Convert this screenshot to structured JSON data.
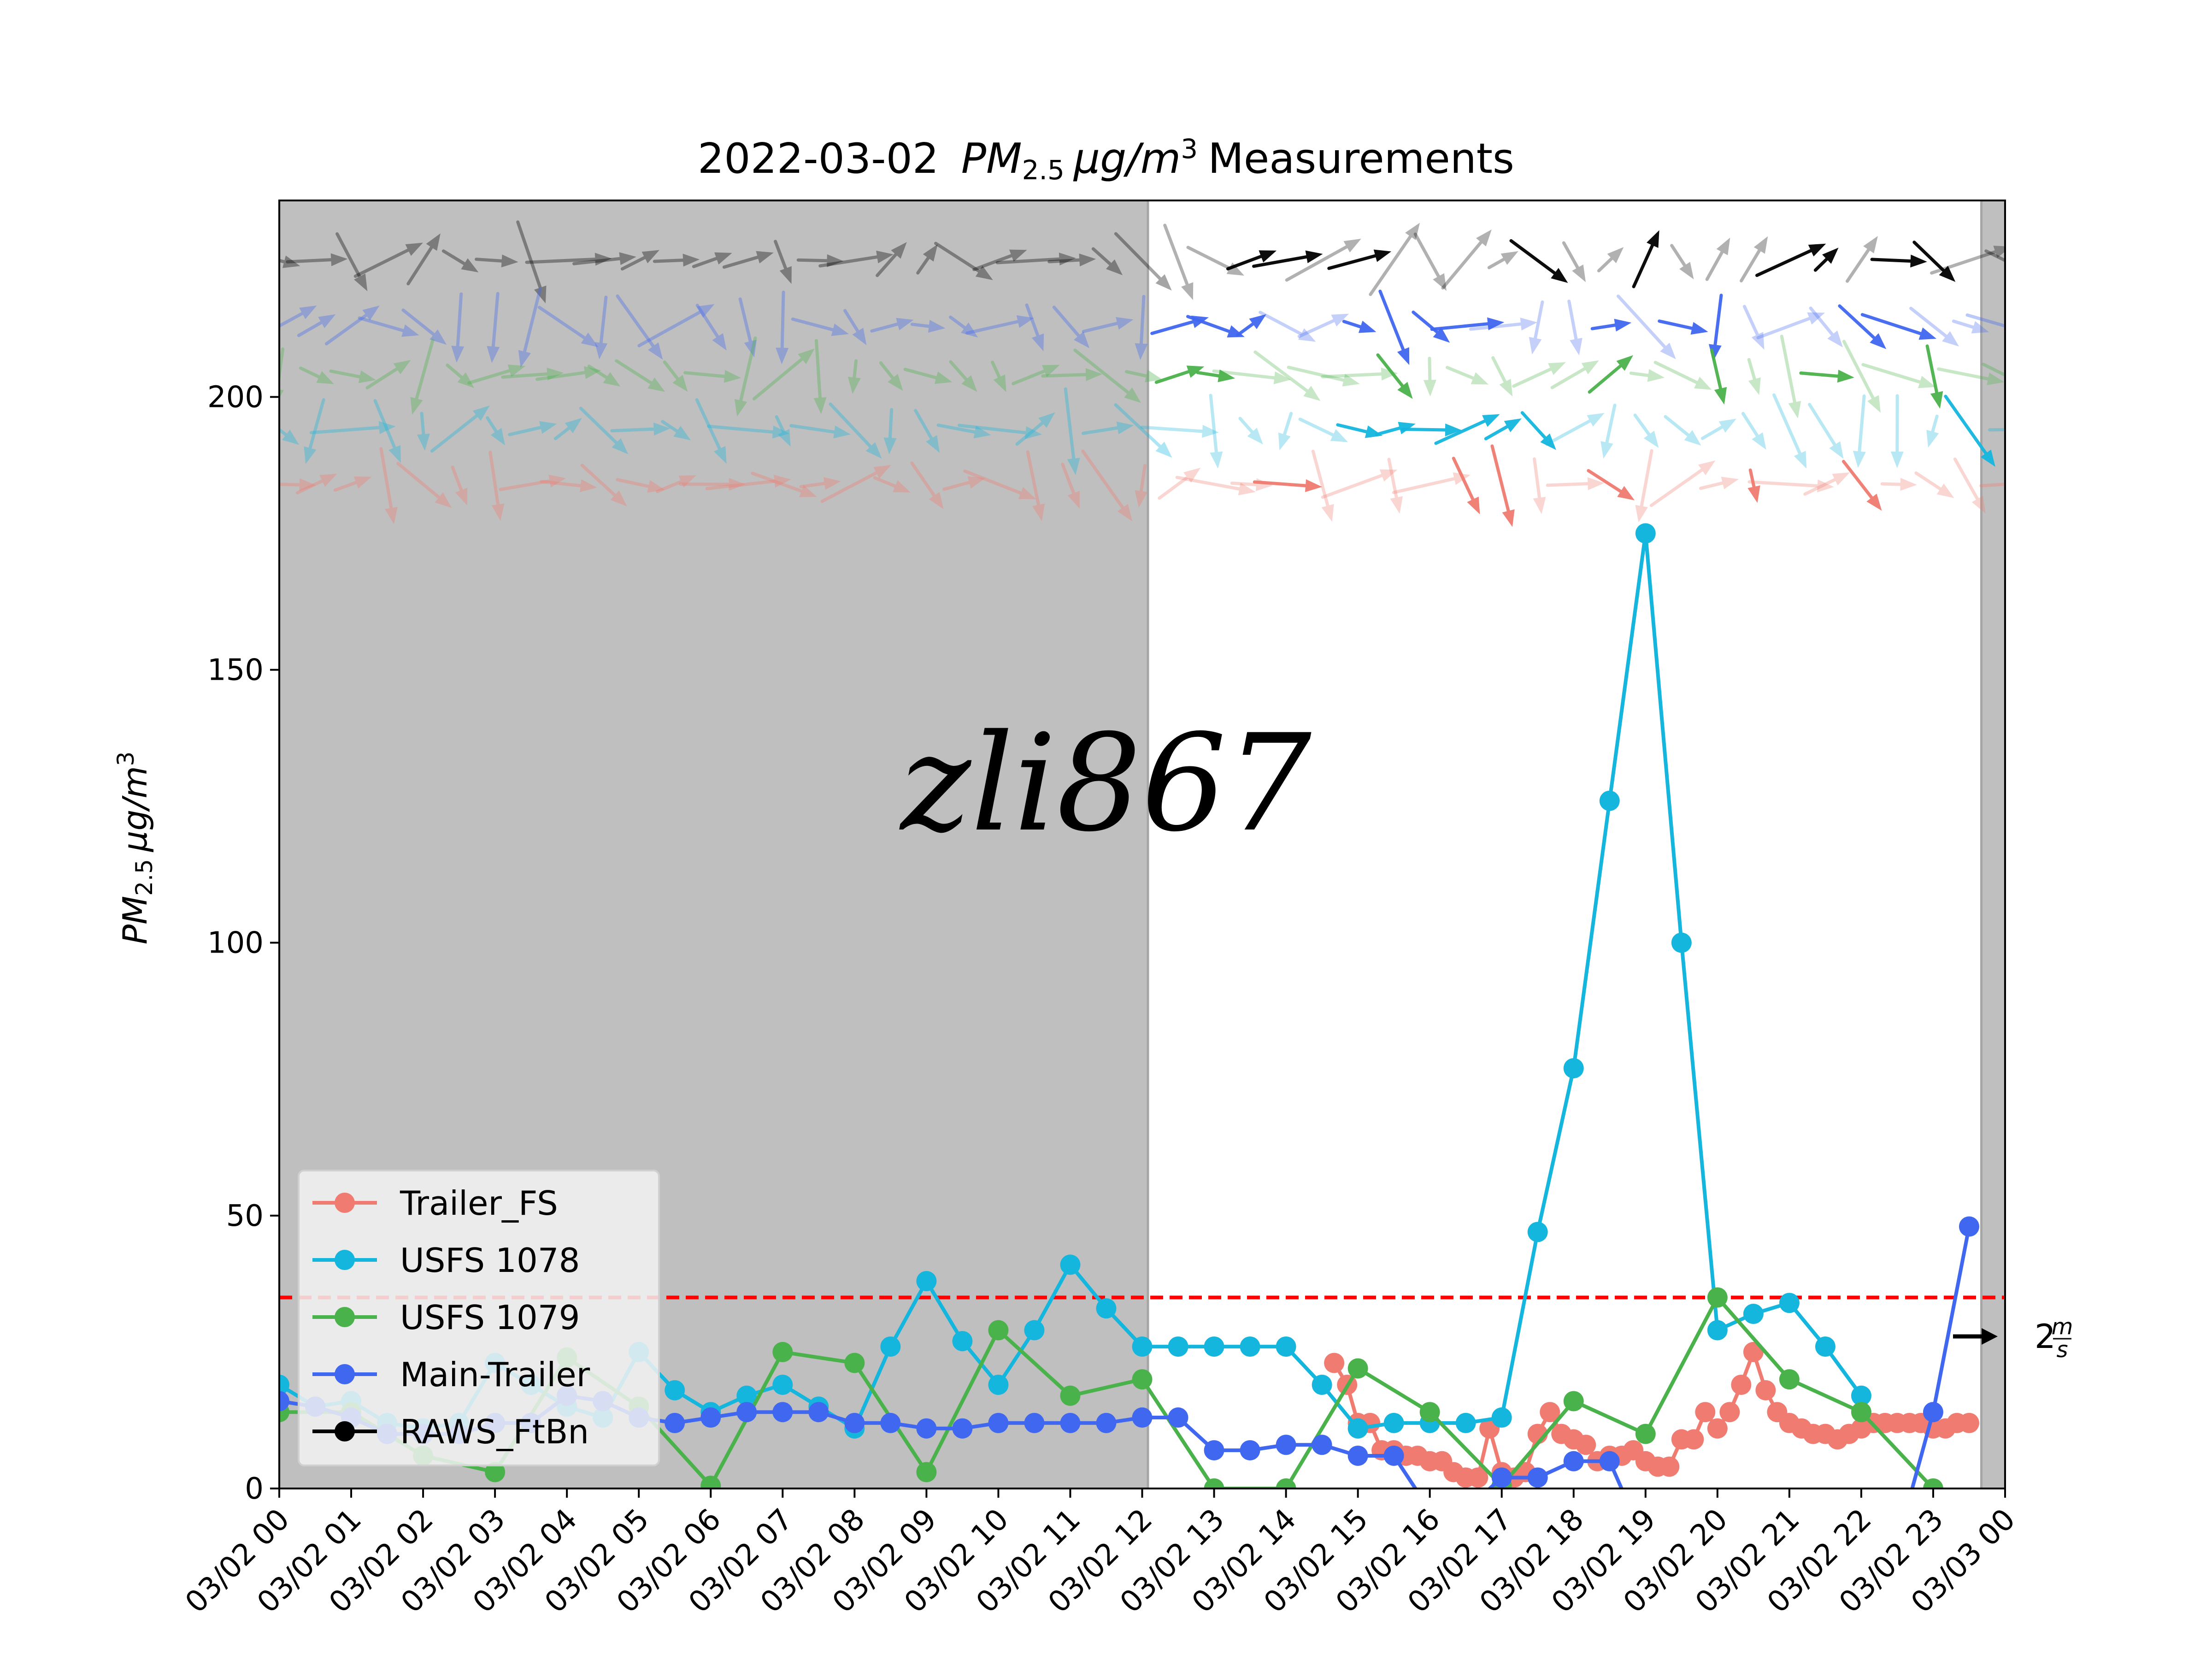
{
  "chart_data": {
    "type": "line",
    "title": "2022-03-02",
    "title_math": {
      "base": "PM",
      "sub": "2.5",
      "unit_mu": "μg/m",
      "sup": "3"
    },
    "title_suffix": "Measurements",
    "ylabel_math": {
      "base": "PM",
      "sub": "2.5",
      "unit_mu": "μg/m",
      "sup": "3"
    },
    "ylim": [
      0,
      236
    ],
    "yticks": [
      0,
      50,
      100,
      150,
      200
    ],
    "xlim_hours": [
      0,
      24
    ],
    "xtick_labels": [
      "03/02 00",
      "03/02 01",
      "03/02 02",
      "03/02 03",
      "03/02 04",
      "03/02 05",
      "03/02 06",
      "03/02 07",
      "03/02 08",
      "03/02 09",
      "03/02 10",
      "03/02 11",
      "03/02 12",
      "03/02 13",
      "03/02 14",
      "03/02 15",
      "03/02 16",
      "03/02 17",
      "03/02 18",
      "03/02 19",
      "03/02 20",
      "03/02 21",
      "03/02 22",
      "03/02 23",
      "03/03 00"
    ],
    "night_shading": [
      [
        0,
        12.08
      ],
      [
        23.67,
        24
      ]
    ],
    "threshold": {
      "value": 35,
      "color": "#ff0000",
      "style": "dashed"
    },
    "watermark": "zli867",
    "wind_scale_label": {
      "value": "2",
      "num": "m",
      "den": "s"
    },
    "series": [
      {
        "name": "Trailer_FS",
        "color": "#f07b70",
        "x": [
          14.67,
          14.85,
          15.0,
          15.17,
          15.33,
          15.5,
          15.67,
          15.83,
          16.0,
          16.17,
          16.33,
          16.5,
          16.67,
          16.83,
          17.0,
          17.17,
          17.33,
          17.5,
          17.67,
          17.83,
          18.0,
          18.17,
          18.33,
          18.5,
          18.67,
          18.83,
          19.0,
          19.17,
          19.33,
          19.5,
          19.67,
          19.83,
          20.0,
          20.17,
          20.33,
          20.5,
          20.67,
          20.83,
          21.0,
          21.17,
          21.33,
          21.5,
          21.67,
          21.83,
          22.0,
          22.17,
          22.33,
          22.5,
          22.67,
          22.83,
          23.0,
          23.17,
          23.33,
          23.5
        ],
        "y": [
          23,
          19,
          12,
          12,
          7,
          7,
          6,
          6,
          5,
          5,
          3,
          2,
          2,
          11,
          3,
          2,
          3,
          10,
          14,
          10,
          9,
          8,
          5,
          6,
          6,
          7,
          5,
          4,
          4,
          9,
          9,
          14,
          11,
          14,
          19,
          25,
          18,
          14,
          12,
          11,
          10,
          10,
          9,
          10,
          11,
          12,
          12,
          12,
          12,
          12,
          11,
          11,
          12,
          12
        ]
      },
      {
        "name": "USFS 1078",
        "color": "#15b6de",
        "x": [
          0,
          0.5,
          1,
          1.5,
          2,
          2.5,
          3,
          3.5,
          4,
          4.5,
          5,
          5.5,
          6,
          6.5,
          7,
          7.5,
          8,
          8.5,
          9,
          9.5,
          10,
          10.5,
          11,
          11.5,
          12,
          12.5,
          13,
          13.5,
          14,
          14.5,
          15,
          15.5,
          16,
          16.5,
          17,
          17.5,
          18,
          18.5,
          19,
          19.5,
          20,
          20.5,
          21,
          21.5,
          22
        ],
        "y": [
          19,
          15,
          16,
          12,
          11,
          12,
          23,
          19,
          15,
          13,
          25,
          18,
          14,
          17,
          19,
          15,
          11,
          26,
          38,
          27,
          19,
          29,
          41,
          33,
          26,
          26,
          26,
          26,
          26,
          19,
          11,
          12,
          12,
          12,
          13,
          47,
          77,
          126,
          175,
          100,
          29,
          32,
          34,
          26,
          17
        ]
      },
      {
        "name": "USFS 1079",
        "color": "#4ab24a",
        "x": [
          0,
          1,
          2,
          3,
          4,
          5,
          6,
          7,
          8,
          9,
          10,
          11,
          12,
          13,
          14,
          15,
          16,
          17,
          18,
          19,
          20,
          21,
          22,
          23
        ],
        "y": [
          14,
          14,
          6,
          3,
          24,
          15,
          0.5,
          25,
          23,
          3,
          29,
          17,
          20,
          0,
          0,
          22,
          14,
          0.5,
          16,
          10,
          35,
          20,
          14,
          0
        ]
      },
      {
        "name": "Main-Trailer",
        "color": "#4067f0",
        "x": [
          0,
          0.5,
          1,
          1.5,
          2,
          2.5,
          3,
          3.5,
          4,
          4.5,
          5,
          5.5,
          6,
          6.5,
          7,
          7.5,
          8,
          8.5,
          9,
          9.5,
          10,
          10.5,
          11,
          11.5,
          12,
          12.5,
          13,
          13.5,
          14,
          14.5,
          15,
          15.5,
          16,
          16.5,
          17,
          17.5,
          18,
          18.5,
          19,
          19.5,
          20,
          20.5,
          21,
          21.5,
          22,
          22.5,
          23,
          23.5
        ],
        "y": [
          16,
          15,
          13,
          10,
          10,
          10,
          12,
          12,
          17,
          16,
          13,
          12,
          13,
          14,
          14,
          14,
          12,
          12,
          11,
          11,
          12,
          12,
          12,
          12,
          13,
          13,
          7,
          7,
          8,
          8,
          6,
          6,
          -4,
          -4,
          2,
          2,
          5,
          5,
          -10,
          -10,
          -10,
          -10,
          -10,
          -10,
          -10,
          -10,
          14,
          48
        ]
      }
    ],
    "wind_rows": [
      {
        "name": "RAWS_FtBn",
        "color": "#000000",
        "level": 225
      },
      {
        "name": "Main-Trailer",
        "color": "#4067f0",
        "level": 213
      },
      {
        "name": "USFS 1079",
        "color": "#4ab24a",
        "level": 204
      },
      {
        "name": "USFS 1078",
        "color": "#15b6de",
        "level": 194
      },
      {
        "name": "Trailer_FS",
        "color": "#f07b70",
        "level": 184
      }
    ],
    "legend": {
      "placement": "lower-left",
      "entries": [
        "Trailer_FS",
        "USFS 1078",
        "USFS 1079",
        "Main-Trailer",
        "RAWS_FtBn"
      ]
    }
  }
}
